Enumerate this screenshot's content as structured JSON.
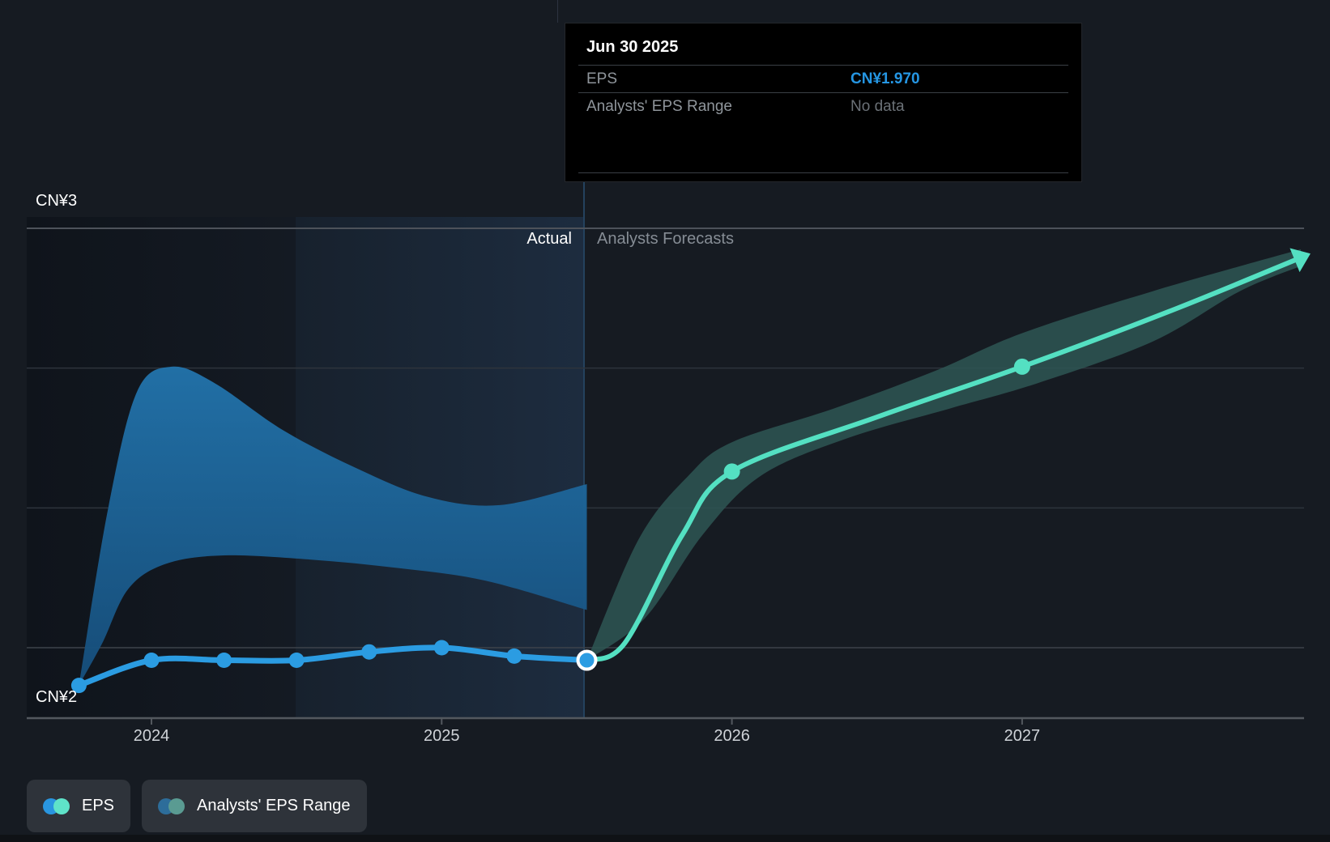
{
  "tooltip": {
    "date": "Jun 30 2025",
    "rows": [
      {
        "label": "EPS",
        "value": "CN¥1.970",
        "style": "eps"
      },
      {
        "label": "Analysts' EPS Range",
        "value": "No data",
        "style": "muted"
      }
    ]
  },
  "phase_labels": {
    "actual": "Actual",
    "forecast": "Analysts Forecasts"
  },
  "legend": [
    {
      "label": "EPS",
      "colors": [
        "#2996e0",
        "#5fe3c9"
      ]
    },
    {
      "label": "Analysts' EPS Range",
      "colors": [
        "#2d6d9a",
        "#5a9b92"
      ]
    }
  ],
  "colors": {
    "background": "#161b22",
    "eps_line": "#2b9ce2",
    "forecast_line": "#54e0c2",
    "forecast_band": "rgba(46,86,84,0.85)",
    "actual_band_top": "#2273ab",
    "actual_band_bottom": "#164e7b",
    "gridline_major": "#4d525a",
    "gridline_minor": "#2e343c",
    "gridline_base": "#3d434b",
    "axis_line": "#53585e",
    "hover_ring": "#ffffff",
    "tooltip_value_blue": "#2596e3"
  },
  "chart_data": {
    "type": "line",
    "title": "EPS actual vs analysts forecasts",
    "currency": "CN¥",
    "y_axis": {
      "labels": [
        {
          "text": "CN¥3",
          "value": 3
        },
        {
          "text": "CN¥2",
          "value": 2
        }
      ],
      "gridlines": [
        {
          "value": 3.0,
          "weight": "major"
        },
        {
          "value": 2.6667,
          "weight": "minor"
        },
        {
          "value": 2.3333,
          "weight": "minor"
        },
        {
          "value": 2.0,
          "weight": "base"
        }
      ],
      "range": [
        2,
        3
      ]
    },
    "x_axis": {
      "ticks": [
        {
          "label": "2024",
          "year": 2024
        },
        {
          "label": "2025",
          "year": 2025
        },
        {
          "label": "2026",
          "year": 2026
        },
        {
          "label": "2027",
          "year": 2027
        }
      ],
      "range_years": [
        2023.57,
        2028.05
      ]
    },
    "divider_year": 2025.5,
    "hovered_point": {
      "date": "Jun 30 2025",
      "value": 1.97
    },
    "series": [
      {
        "name": "EPS (actual)",
        "points": [
          {
            "date": "Sep 30 2023",
            "x": 2023.75,
            "y": 1.91,
            "dot": true
          },
          {
            "date": "Dec 31 2023",
            "x": 2024.0,
            "y": 1.97,
            "dot": true
          },
          {
            "date": "Mar 31 2024",
            "x": 2024.25,
            "y": 1.97,
            "dot": true
          },
          {
            "date": "Jun 30 2024",
            "x": 2024.5,
            "y": 1.97,
            "dot": true
          },
          {
            "date": "Sep 30 2024",
            "x": 2024.75,
            "y": 1.99,
            "dot": true
          },
          {
            "date": "Dec 31 2024",
            "x": 2025.0,
            "y": 2.0,
            "dot": true
          },
          {
            "date": "Mar 31 2025",
            "x": 2025.25,
            "y": 1.98,
            "dot": true
          },
          {
            "date": "Jun 30 2025",
            "x": 2025.5,
            "y": 1.97,
            "dot": true
          }
        ]
      },
      {
        "name": "EPS (analysts forecast)",
        "points": [
          {
            "date": "Jun 30 2025",
            "x": 2025.5,
            "y": 1.97,
            "dot": false
          },
          {
            "date": "",
            "x": 2025.63,
            "y": 2.01,
            "dot": false
          },
          {
            "date": "",
            "x": 2025.83,
            "y": 2.27,
            "dot": false
          },
          {
            "date": "Dec 31 2025",
            "x": 2026.0,
            "y": 2.42,
            "dot": true
          },
          {
            "date": "",
            "x": 2026.5,
            "y": 2.55,
            "dot": false
          },
          {
            "date": "Dec 31 2026",
            "x": 2027.0,
            "y": 2.67,
            "dot": true
          },
          {
            "date": "",
            "x": 2027.5,
            "y": 2.8,
            "dot": false
          },
          {
            "date": "Dec 31 2027",
            "x": 2027.96,
            "y": 2.93,
            "dot": false
          }
        ]
      }
    ],
    "bands": [
      {
        "name": "actual-range-band",
        "top": [
          [
            2023.75,
            1.91
          ],
          [
            2023.85,
            2.33
          ],
          [
            2023.95,
            2.61
          ],
          [
            2024.07,
            2.67
          ],
          [
            2024.22,
            2.63
          ],
          [
            2024.45,
            2.52
          ],
          [
            2024.7,
            2.43
          ],
          [
            2024.95,
            2.36
          ],
          [
            2025.2,
            2.34
          ],
          [
            2025.5,
            2.39
          ]
        ],
        "bottom": [
          [
            2023.75,
            1.91
          ],
          [
            2023.83,
            2.01
          ],
          [
            2023.92,
            2.14
          ],
          [
            2024.05,
            2.2
          ],
          [
            2024.25,
            2.22
          ],
          [
            2024.55,
            2.21
          ],
          [
            2024.85,
            2.19
          ],
          [
            2025.15,
            2.16
          ],
          [
            2025.5,
            2.09
          ]
        ]
      },
      {
        "name": "forecast-range-band",
        "top": [
          [
            2025.5,
            1.97
          ],
          [
            2025.68,
            2.26
          ],
          [
            2025.85,
            2.41
          ],
          [
            2026.0,
            2.49
          ],
          [
            2026.35,
            2.57
          ],
          [
            2026.7,
            2.66
          ],
          [
            2027.0,
            2.75
          ],
          [
            2027.45,
            2.85
          ],
          [
            2027.96,
            2.95
          ]
        ],
        "bottom": [
          [
            2025.5,
            1.97
          ],
          [
            2025.7,
            2.07
          ],
          [
            2025.9,
            2.27
          ],
          [
            2026.1,
            2.41
          ],
          [
            2026.4,
            2.5
          ],
          [
            2026.75,
            2.57
          ],
          [
            2027.05,
            2.63
          ],
          [
            2027.45,
            2.73
          ],
          [
            2027.75,
            2.85
          ],
          [
            2027.96,
            2.91
          ]
        ]
      }
    ]
  }
}
